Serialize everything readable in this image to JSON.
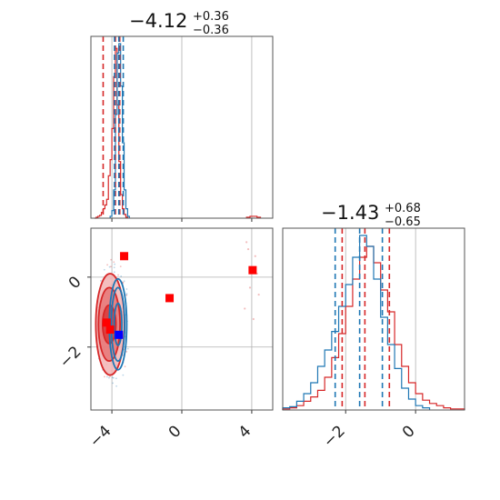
{
  "chart_data": {
    "type": "corner",
    "parameters": [
      "",
      ""
    ],
    "colors": {
      "red": "#d62728",
      "blue": "#1f77b4",
      "marker_red": "#ff0000",
      "marker_blue": "#0000ff"
    },
    "panels": {
      "hist_param1": {
        "type": "histogram",
        "title_median": "−4.12",
        "title_plus": "+0.36",
        "title_minus": "−0.36",
        "xlim": [
          -5.2,
          5.2
        ],
        "red_quantiles": [
          -4.5,
          -3.8,
          -3.55
        ],
        "blue_quantiles": [
          -3.85,
          -3.6,
          -3.35
        ],
        "red_series": {
          "bin_edges": [
            -5.0,
            -4.9,
            -4.8,
            -4.7,
            -4.6,
            -4.5,
            -4.4,
            -4.3,
            -4.2,
            -4.1,
            -4.0,
            -3.9,
            -3.8,
            -3.7,
            -3.6,
            -3.5,
            -3.4,
            -3.3,
            -3.2,
            -3.1
          ],
          "counts": [
            0,
            1,
            2,
            3,
            6,
            10,
            14,
            20,
            45,
            62,
            95,
            150,
            180,
            120,
            60,
            25,
            10,
            4,
            1
          ]
        },
        "red_outlier_bins": {
          "bin_edges": [
            3.7,
            3.9,
            4.1,
            4.3,
            4.5
          ],
          "counts": [
            1,
            2,
            2,
            1
          ]
        },
        "blue_series": {
          "bin_edges": [
            -4.1,
            -4.0,
            -3.9,
            -3.8,
            -3.7,
            -3.6,
            -3.5,
            -3.4,
            -3.3,
            -3.2,
            -3.1,
            -3.0
          ],
          "counts": [
            2,
            8,
            30,
            110,
            175,
            185,
            140,
            80,
            30,
            10,
            2
          ]
        },
        "ticks": [
          -4,
          0,
          4
        ]
      },
      "scatter_2d": {
        "type": "contour_scatter",
        "xlim": [
          -5.2,
          5.2
        ],
        "ylim": [
          -3.8,
          1.4
        ],
        "xticks": [
          -4,
          0,
          4
        ],
        "xtick_labels": [
          "−4",
          "0",
          "4"
        ],
        "yticks": [
          -2,
          0
        ],
        "ytick_labels": [
          "−2",
          "0"
        ],
        "red_contours": [
          {
            "cx": -4.15,
            "cy": -1.35,
            "rx": 0.38,
            "ry": 0.55
          },
          {
            "cx": -4.15,
            "cy": -1.35,
            "rx": 0.62,
            "ry": 1.05
          },
          {
            "cx": -4.1,
            "cy": -1.35,
            "rx": 0.82,
            "ry": 1.45
          }
        ],
        "blue_contours": [
          {
            "cx": -3.65,
            "cy": -1.35,
            "rx": 0.22,
            "ry": 0.6
          },
          {
            "cx": -3.65,
            "cy": -1.35,
            "rx": 0.38,
            "ry": 1.05
          },
          {
            "cx": -3.65,
            "cy": -1.35,
            "rx": 0.5,
            "ry": 1.3
          }
        ],
        "red_markers": [
          {
            "x": -3.3,
            "y": 0.6
          },
          {
            "x": -0.7,
            "y": -0.6
          },
          {
            "x": 4.05,
            "y": 0.2
          },
          {
            "x": -4.3,
            "y": -1.3
          },
          {
            "x": -4.1,
            "y": -1.5
          }
        ],
        "blue_markers": [
          {
            "x": -3.6,
            "y": -1.65
          }
        ],
        "outlier_points": [
          {
            "x": 3.8,
            "y": 0.8
          },
          {
            "x": 4.2,
            "y": 0.6
          },
          {
            "x": 3.9,
            "y": -0.3
          },
          {
            "x": 4.4,
            "y": -0.5
          },
          {
            "x": 3.6,
            "y": -0.9
          },
          {
            "x": 4.1,
            "y": -1.2
          },
          {
            "x": 3.7,
            "y": 1.0
          },
          {
            "x": 4.3,
            "y": 0.1
          }
        ]
      },
      "hist_param2": {
        "type": "histogram",
        "title_median": "−1.43",
        "title_plus": "+0.68",
        "title_minus": "−0.65",
        "xlim": [
          -3.8,
          1.4
        ],
        "xticks": [
          -2,
          0
        ],
        "xtick_labels": [
          "−2",
          "0"
        ],
        "red_quantiles": [
          -2.1,
          -1.45,
          -0.75
        ],
        "blue_quantiles": [
          -2.3,
          -1.6,
          -0.95
        ],
        "red_series": {
          "bin_edges": [
            -3.8,
            -3.6,
            -3.4,
            -3.2,
            -3.0,
            -2.8,
            -2.6,
            -2.4,
            -2.2,
            -2.0,
            -1.8,
            -1.6,
            -1.4,
            -1.2,
            -1.0,
            -0.8,
            -0.6,
            -0.4,
            -0.2,
            0.0,
            0.2,
            0.4,
            0.6,
            0.8,
            1.0,
            1.2,
            1.4
          ],
          "counts": [
            1,
            2,
            4,
            8,
            12,
            18,
            30,
            48,
            70,
            95,
            120,
            140,
            150,
            135,
            110,
            90,
            60,
            40,
            25,
            15,
            9,
            6,
            4,
            2,
            1,
            1
          ]
        },
        "blue_series": {
          "bin_edges": [
            -3.8,
            -3.6,
            -3.4,
            -3.2,
            -3.0,
            -2.8,
            -2.6,
            -2.4,
            -2.2,
            -2.0,
            -1.8,
            -1.6,
            -1.4,
            -1.2,
            -1.0,
            -0.8,
            -0.6,
            -0.4,
            -0.2,
            0.0,
            0.2,
            0.4
          ],
          "counts": [
            2,
            3,
            8,
            15,
            25,
            40,
            55,
            72,
            95,
            115,
            140,
            160,
            150,
            120,
            85,
            60,
            38,
            20,
            10,
            4,
            2
          ]
        }
      }
    }
  }
}
